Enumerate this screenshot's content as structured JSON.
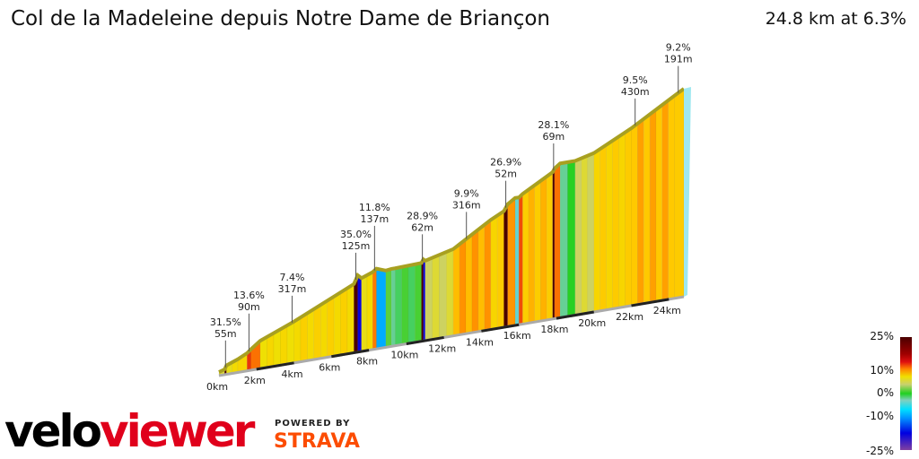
{
  "header": {
    "title": "Col de la Madeleine depuis Notre Dame de Briançon",
    "summary": "24.8 km at 6.3%"
  },
  "chart_data": {
    "type": "area",
    "total_km": 24.8,
    "avg_grade": 6.3,
    "segments": [
      [
        0.3,
        5
      ],
      [
        0.4,
        31.5
      ],
      [
        1.0,
        6
      ],
      [
        1.5,
        8
      ],
      [
        1.7,
        13.6
      ],
      [
        2.2,
        12
      ],
      [
        4,
        6.5
      ],
      [
        7.2,
        7.4
      ],
      [
        7.4,
        35
      ],
      [
        7.6,
        -15
      ],
      [
        8.2,
        6
      ],
      [
        8.4,
        11.8
      ],
      [
        8.9,
        -6
      ],
      [
        9.2,
        2
      ],
      [
        9.4,
        0
      ],
      [
        10.8,
        0.5
      ],
      [
        10.9,
        28.9
      ],
      [
        11.0,
        -15
      ],
      [
        12.5,
        4
      ],
      [
        14.5,
        9.9
      ],
      [
        15.2,
        8
      ],
      [
        15.4,
        26.9
      ],
      [
        15.8,
        11
      ],
      [
        16.0,
        -1
      ],
      [
        16.2,
        13
      ],
      [
        17.8,
        9
      ],
      [
        17.9,
        28.1
      ],
      [
        18.2,
        12
      ],
      [
        19.0,
        0
      ],
      [
        20,
        4
      ],
      [
        22,
        8
      ],
      [
        24.3,
        9.5
      ],
      [
        24.8,
        9.2
      ]
    ],
    "annotations": [
      {
        "km": 0.35,
        "grade": "31.5%",
        "length": "55m"
      },
      {
        "km": 1.6,
        "grade": "13.6%",
        "length": "90m"
      },
      {
        "km": 3.9,
        "grade": "7.4%",
        "length": "317m"
      },
      {
        "km": 7.3,
        "grade": "35.0%",
        "length": "125m"
      },
      {
        "km": 8.3,
        "grade": "11.8%",
        "length": "137m"
      },
      {
        "km": 10.85,
        "grade": "28.9%",
        "length": "62m"
      },
      {
        "km": 13.2,
        "grade": "9.9%",
        "length": "316m"
      },
      {
        "km": 15.3,
        "grade": "26.9%",
        "length": "52m"
      },
      {
        "km": 17.85,
        "grade": "28.1%",
        "length": "69m"
      },
      {
        "km": 22.2,
        "grade": "9.5%",
        "length": "430m"
      },
      {
        "km": 24.5,
        "grade": "9.2%",
        "length": "191m"
      }
    ],
    "x_ticks": [
      "0km",
      "2km",
      "4km",
      "6km",
      "8km",
      "10km",
      "12km",
      "14km",
      "16km",
      "18km",
      "20km",
      "22km",
      "24km"
    ],
    "legend": {
      "ticks": [
        "25%",
        "10%",
        "0%",
        "-10%",
        "-25%"
      ]
    }
  },
  "brand": {
    "logo": "veloviewer",
    "powered": "POWERED BY",
    "strava": "STRAVA",
    "colors": {
      "velo": "#000000",
      "viewer": "#e0001b",
      "strava": "#fc4c02"
    }
  }
}
